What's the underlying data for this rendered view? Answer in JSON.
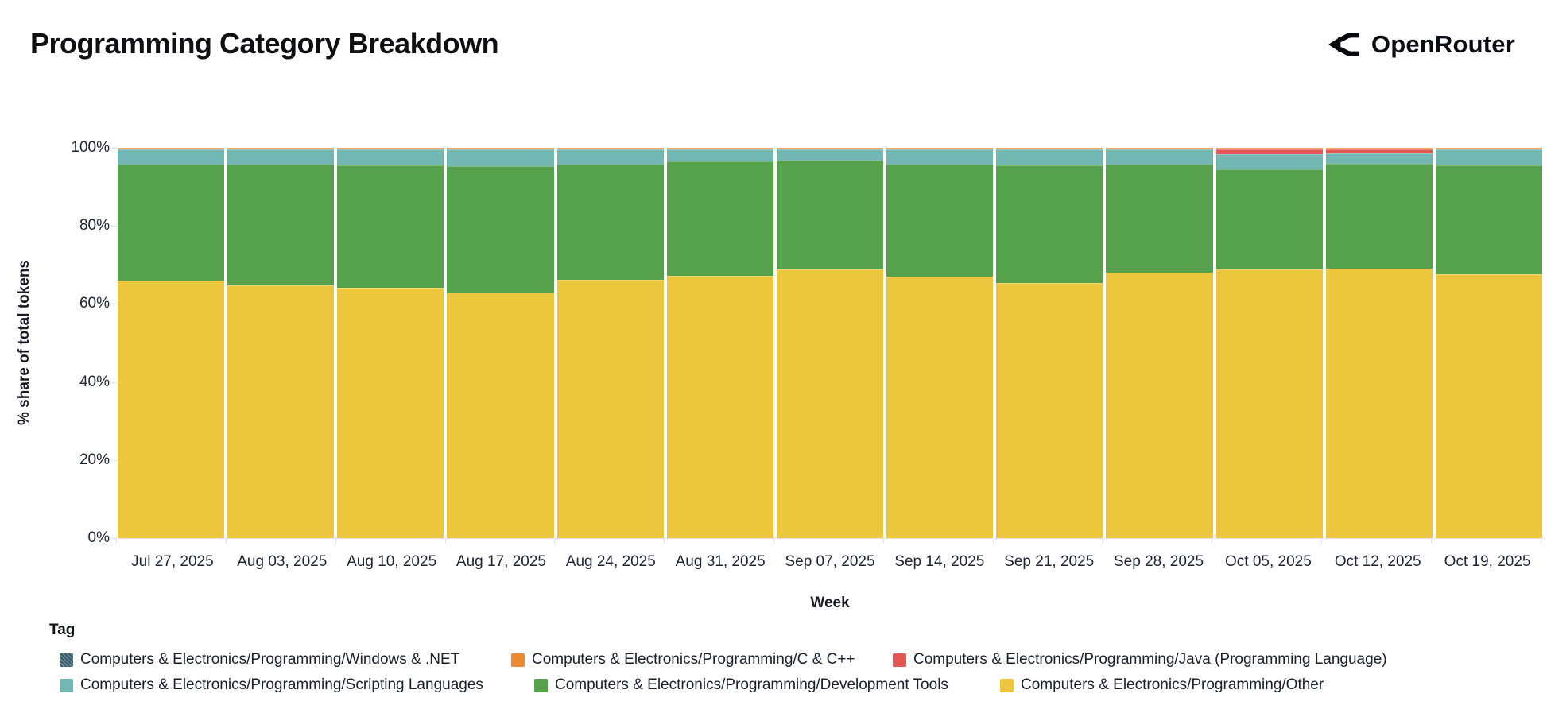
{
  "header": {
    "title": "Programming Category Breakdown",
    "brand": "OpenRouter"
  },
  "chart_data": {
    "type": "bar",
    "stacked": true,
    "normalized_percent": true,
    "title": "Programming Category Breakdown",
    "xlabel": "Week",
    "ylabel": "% share of total tokens",
    "ylim": [
      0,
      100
    ],
    "yticks": [
      "0%",
      "20%",
      "40%",
      "60%",
      "80%",
      "100%"
    ],
    "grid": false,
    "legend_position": "bottom",
    "categories": [
      "Jul 27, 2025",
      "Aug 03, 2025",
      "Aug 10, 2025",
      "Aug 17, 2025",
      "Aug 24, 2025",
      "Aug 31, 2025",
      "Sep 07, 2025",
      "Sep 14, 2025",
      "Sep 21, 2025",
      "Sep 28, 2025",
      "Oct 05, 2025",
      "Oct 12, 2025",
      "Oct 19, 2025"
    ],
    "series": [
      {
        "name": "Computers & Electronics/Programming/Other",
        "color": "#ecc63d",
        "values": [
          66.0,
          64.8,
          64.2,
          62.9,
          66.2,
          67.2,
          68.8,
          67.0,
          65.4,
          68.0,
          68.8,
          69.0,
          67.6
        ]
      },
      {
        "name": "Computers & Electronics/Programming/Development Tools",
        "color": "#55a14c",
        "values": [
          29.7,
          30.9,
          31.3,
          32.4,
          29.5,
          29.3,
          27.9,
          28.7,
          30.1,
          27.7,
          25.7,
          26.9,
          27.9
        ]
      },
      {
        "name": "Computers & Electronics/Programming/Scripting Languages",
        "color": "#73b7b2",
        "values": [
          3.8,
          3.8,
          4.0,
          4.2,
          3.8,
          3.0,
          2.8,
          3.8,
          4.0,
          3.8,
          3.9,
          2.7,
          4.0
        ]
      },
      {
        "name": "Computers & Electronics/Programming/Java (Programming Language)",
        "color": "#e25653",
        "values": [
          0,
          0,
          0,
          0,
          0,
          0,
          0,
          0,
          0,
          0,
          1.3,
          1.1,
          0
        ]
      },
      {
        "name": "Computers & Electronics/Programming/C & C++",
        "color": "#ec8a33",
        "values": [
          0.5,
          0.5,
          0.5,
          0.5,
          0.5,
          0.5,
          0.5,
          0.5,
          0.5,
          0.5,
          0.3,
          0.3,
          0.5
        ]
      },
      {
        "name": "Computers & Electronics/Programming/Windows & .NET",
        "color": "#3c5a66",
        "values": [
          0,
          0,
          0,
          0,
          0,
          0,
          0,
          0,
          0,
          0,
          0,
          0,
          0
        ]
      }
    ]
  },
  "legend": {
    "title": "Tag",
    "items": [
      {
        "label": "Computers & Electronics/Programming/Windows & .NET",
        "color": "#3c5a66",
        "hatched": true
      },
      {
        "label": "Computers & Electronics/Programming/C & C++",
        "color": "#ec8a33",
        "hatched": false
      },
      {
        "label": "Computers & Electronics/Programming/Java (Programming Language)",
        "color": "#e25653",
        "hatched": false
      },
      {
        "label": "Computers & Electronics/Programming/Scripting Languages",
        "color": "#73b7b2",
        "hatched": false
      },
      {
        "label": "Computers & Electronics/Programming/Development Tools",
        "color": "#55a14c",
        "hatched": false
      },
      {
        "label": "Computers & Electronics/Programming/Other",
        "color": "#ecc63d",
        "hatched": false
      }
    ]
  }
}
